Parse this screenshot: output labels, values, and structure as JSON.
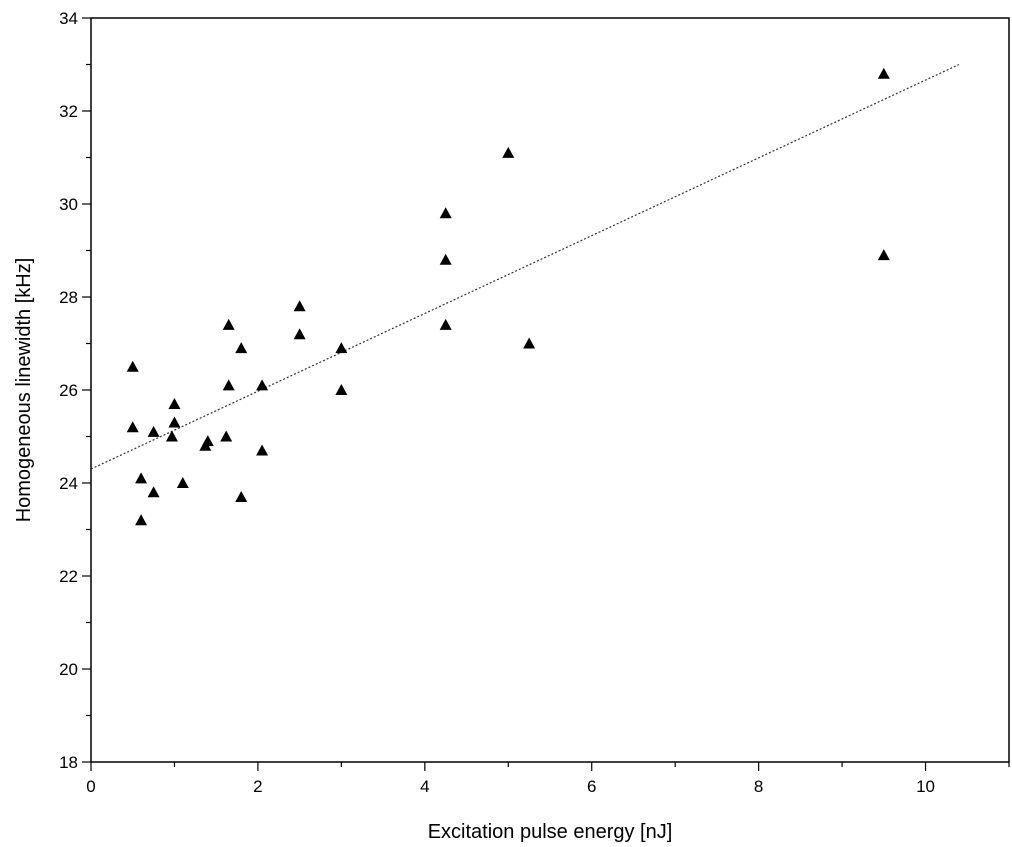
{
  "chart_data": {
    "type": "scatter",
    "title": "",
    "xlabel": "Excitation pulse energy [nJ]",
    "ylabel": "Homogeneous linewidth [kHz]",
    "xlim": [
      0,
      11
    ],
    "ylim": [
      18,
      34
    ],
    "x_ticks": [
      0,
      2,
      4,
      6,
      8,
      10
    ],
    "y_ticks": [
      18,
      20,
      22,
      24,
      26,
      28,
      30,
      32,
      34
    ],
    "x_minor_step": 1,
    "y_minor_step": 1,
    "grid": false,
    "legend": "none",
    "marker": "triangle",
    "marker_color": "#000000",
    "series": [
      {
        "points": [
          [
            0.5,
            26.5
          ],
          [
            0.5,
            25.2
          ],
          [
            0.6,
            24.1
          ],
          [
            0.6,
            23.2
          ],
          [
            0.75,
            25.1
          ],
          [
            0.75,
            23.8
          ],
          [
            0.97,
            25.0
          ],
          [
            1.0,
            25.7
          ],
          [
            1.0,
            25.3
          ],
          [
            1.1,
            24.0
          ],
          [
            1.37,
            24.8
          ],
          [
            1.4,
            24.9
          ],
          [
            1.62,
            25.0
          ],
          [
            1.65,
            27.4
          ],
          [
            1.65,
            26.1
          ],
          [
            1.8,
            26.9
          ],
          [
            1.8,
            23.7
          ],
          [
            2.05,
            26.1
          ],
          [
            2.05,
            24.7
          ],
          [
            2.5,
            27.8
          ],
          [
            2.5,
            27.2
          ],
          [
            3.0,
            26.9
          ],
          [
            3.0,
            26.0
          ],
          [
            4.25,
            29.8
          ],
          [
            4.25,
            28.8
          ],
          [
            4.25,
            27.4
          ],
          [
            5.0,
            31.1
          ],
          [
            5.25,
            27.0
          ],
          [
            9.5,
            32.8
          ],
          [
            9.5,
            28.9
          ]
        ]
      }
    ],
    "fit_line": {
      "style": "dotted",
      "x": [
        0,
        10.4
      ],
      "y": [
        24.3,
        33.0
      ]
    }
  }
}
